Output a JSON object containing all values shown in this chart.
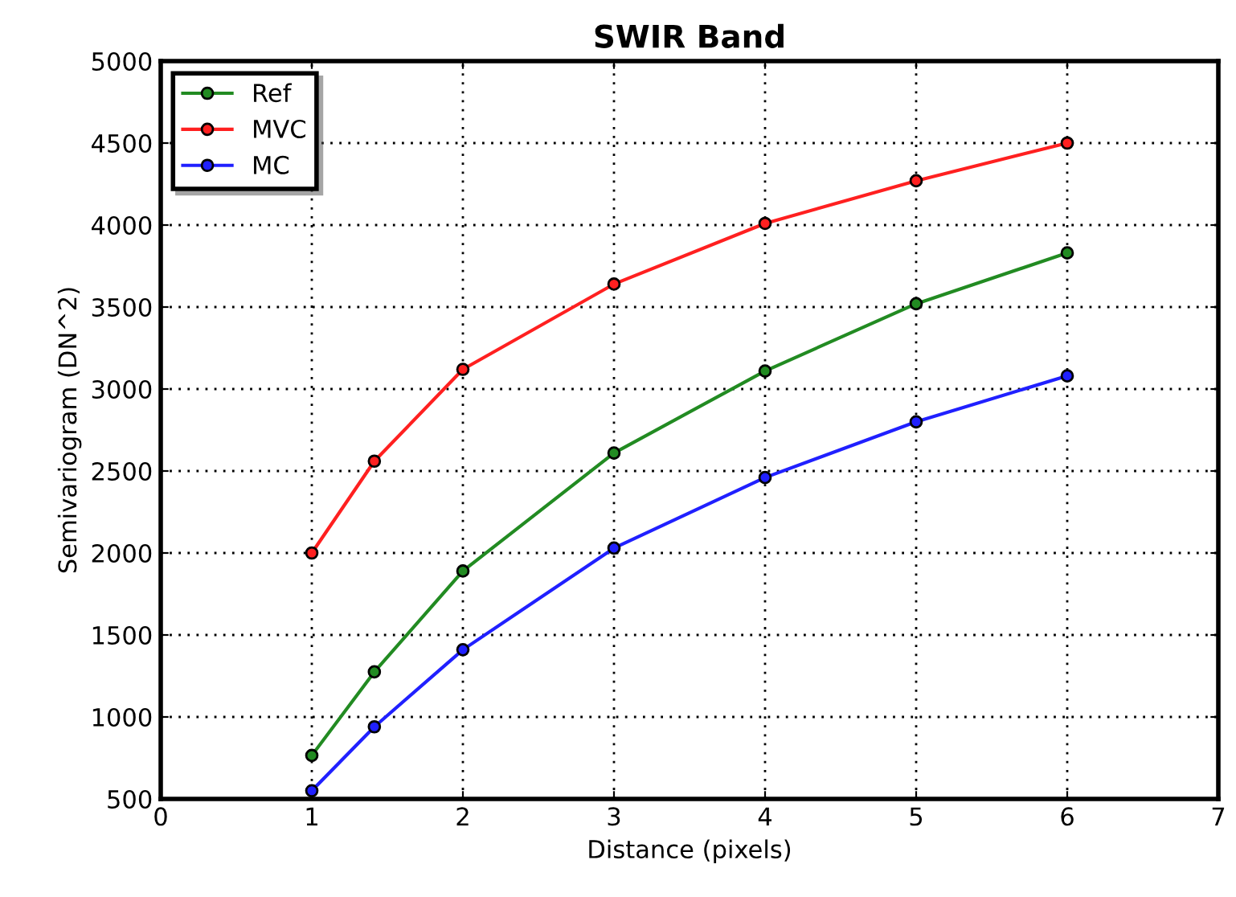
{
  "chart_data": {
    "type": "line",
    "title": "SWIR Band",
    "xlabel": "Distance (pixels)",
    "ylabel": "Semivariogram (DN^2)",
    "x": [
      1,
      1.414,
      2,
      3,
      4,
      5,
      6
    ],
    "series": [
      {
        "name": "Ref",
        "color": "#228b22",
        "values": [
          765,
          1275,
          1890,
          2610,
          3110,
          3520,
          3830
        ]
      },
      {
        "name": "MVC",
        "color": "#ff2020",
        "values": [
          2000,
          2560,
          3120,
          3640,
          4010,
          4270,
          4500
        ]
      },
      {
        "name": "MC",
        "color": "#2020ff",
        "values": [
          550,
          940,
          1410,
          2030,
          2460,
          2800,
          3080
        ]
      }
    ],
    "xlim": [
      0,
      7
    ],
    "xticks": [
      0,
      1,
      2,
      3,
      4,
      5,
      6,
      7
    ],
    "ylim": [
      500,
      5000
    ],
    "yticks": [
      500,
      1000,
      1500,
      2000,
      2500,
      3000,
      3500,
      4000,
      4500,
      5000
    ],
    "grid": true,
    "legend": "top left",
    "marker": "circle",
    "line_style": "solid"
  }
}
